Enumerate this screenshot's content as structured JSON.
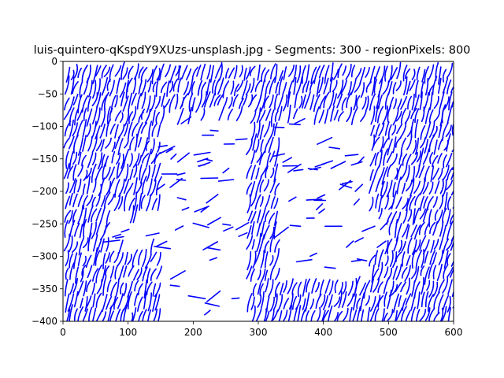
{
  "chart_data": {
    "type": "line",
    "title": "luis-quintero-qKspdY9XUzs-unsplash.jpg - Segments: 300 - regionPixels: 800",
    "xlabel": "",
    "ylabel": "",
    "xlim": [
      0,
      600
    ],
    "ylim": [
      -400,
      0
    ],
    "xticks": [
      0,
      100,
      200,
      300,
      400,
      500,
      600
    ],
    "yticks": [
      0,
      -50,
      -100,
      -150,
      -200,
      -250,
      -300,
      -350,
      -400
    ],
    "grid": false,
    "legend": "none",
    "line_color": "#0000ff",
    "segment_count_label": 300,
    "blank_regions": [
      {
        "name": "left-figure",
        "x": [
          150,
          285
        ],
        "y": [
          -400,
          -85
        ]
      },
      {
        "name": "right-figure",
        "x": [
          330,
          470
        ],
        "y": [
          -340,
          -85
        ]
      },
      {
        "name": "left-arm",
        "x": [
          70,
          160
        ],
        "y": [
          -285,
          -235
        ]
      },
      {
        "name": "right-arm",
        "x": [
          440,
          500
        ],
        "y": [
          -285,
          -235
        ]
      }
    ]
  }
}
